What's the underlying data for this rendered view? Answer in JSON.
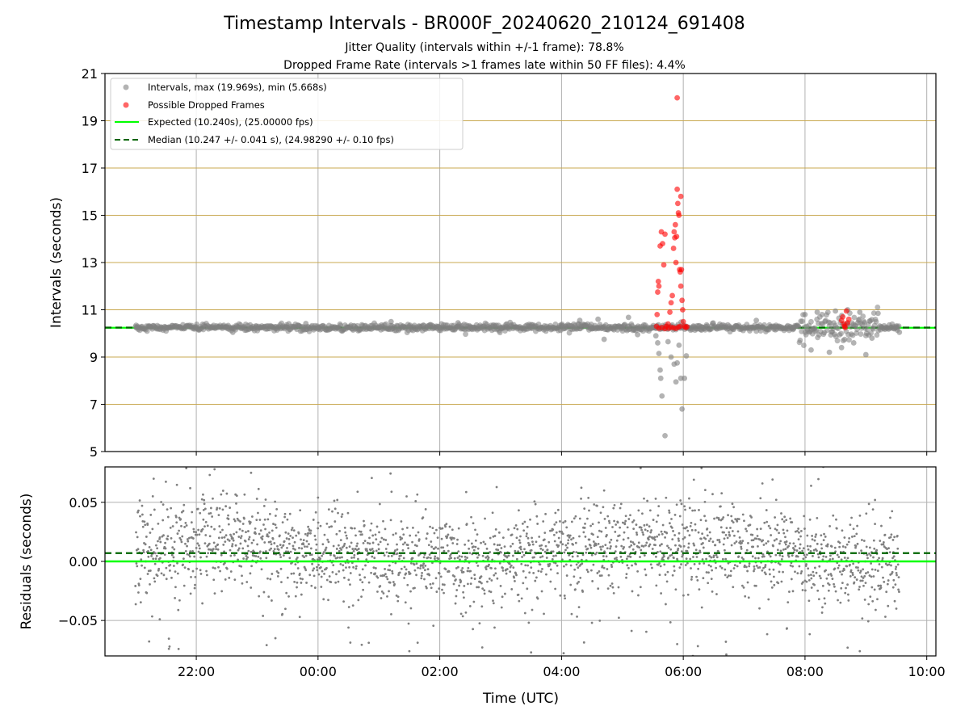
{
  "figure": {
    "title": "Timestamp Intervals - BR000F_20240620_210124_691408",
    "subtitle_1": "Jitter Quality (intervals within +/-1 frame): 78.8%",
    "subtitle_2": "Dropped Frame Rate (intervals >1 frames late within 50 FF files): 4.4%"
  },
  "colors": {
    "intervals": "#808080",
    "dropped": "#ff0000",
    "expected": "#00ff00",
    "median": "#006400",
    "hgrid": "#c8a850",
    "vgrid": "#b0b0b0"
  },
  "chart_data": [
    {
      "type": "scatter",
      "panel": "top",
      "xlabel": "",
      "ylabel": "Intervals (seconds)",
      "ylim": [
        5,
        21
      ],
      "yticks": [
        5,
        7,
        9,
        11,
        13,
        15,
        17,
        19,
        21
      ],
      "xlim_hours": [
        20.5,
        34.15
      ],
      "xticks_hours": [
        22,
        24,
        26,
        28,
        30,
        32,
        34
      ],
      "xtick_labels": [
        "22:00",
        "00:00",
        "02:00",
        "04:00",
        "06:00",
        "08:00",
        "10:00"
      ],
      "grid": true,
      "legend_position": "top-left",
      "expected_interval": 10.24,
      "median_interval": 10.247,
      "series": [
        {
          "name": "Intervals, max (19.969s), min (5.668s)",
          "kind": "scatter",
          "color": "#808080",
          "points": [
            [
              21.02,
              10.23
            ],
            [
              21.5,
              10.25
            ],
            [
              22.0,
              10.22
            ],
            [
              22.5,
              10.26
            ],
            [
              23.0,
              10.24
            ],
            [
              23.5,
              10.25
            ],
            [
              24.0,
              10.23
            ],
            [
              24.5,
              10.27
            ],
            [
              25.0,
              10.24
            ],
            [
              25.5,
              10.26
            ],
            [
              26.0,
              10.25
            ],
            [
              26.5,
              10.22
            ],
            [
              27.0,
              10.26
            ],
            [
              27.5,
              10.24
            ],
            [
              28.0,
              10.28
            ],
            [
              28.5,
              10.25
            ],
            [
              29.0,
              10.23
            ],
            [
              29.5,
              10.26
            ],
            [
              22.6,
              10.05
            ],
            [
              23.8,
              10.42
            ],
            [
              25.2,
              10.5
            ],
            [
              26.3,
              10.45
            ],
            [
              27.1,
              10.4
            ],
            [
              28.3,
              10.55
            ],
            [
              28.6,
              10.6
            ],
            [
              28.7,
              9.75
            ],
            [
              29.1,
              10.68
            ],
            [
              29.25,
              9.95
            ],
            [
              29.55,
              9.9
            ],
            [
              29.58,
              9.6
            ],
            [
              29.6,
              9.15
            ],
            [
              29.62,
              8.45
            ],
            [
              29.63,
              8.1
            ],
            [
              29.65,
              7.35
            ],
            [
              29.7,
              5.67
            ],
            [
              29.75,
              9.65
            ],
            [
              29.8,
              9.0
            ],
            [
              29.85,
              8.7
            ],
            [
              29.88,
              7.95
            ],
            [
              29.9,
              8.75
            ],
            [
              29.93,
              9.5
            ],
            [
              29.96,
              8.1
            ],
            [
              29.98,
              6.8
            ],
            [
              30.02,
              8.1
            ],
            [
              30.05,
              9.05
            ],
            [
              30.3,
              10.28
            ],
            [
              30.8,
              10.22
            ],
            [
              31.2,
              10.55
            ],
            [
              31.5,
              10.3
            ],
            [
              31.8,
              10.25
            ],
            [
              32.0,
              10.8
            ],
            [
              32.1,
              9.3
            ],
            [
              32.2,
              10.9
            ],
            [
              32.4,
              9.2
            ],
            [
              32.5,
              10.95
            ],
            [
              32.6,
              9.4
            ],
            [
              32.7,
              11.0
            ],
            [
              32.8,
              9.6
            ],
            [
              32.9,
              10.9
            ],
            [
              33.0,
              9.1
            ],
            [
              33.1,
              9.8
            ],
            [
              33.2,
              10.85
            ],
            [
              33.5,
              10.24
            ],
            [
              33.55,
              10.05
            ]
          ]
        },
        {
          "name": "Possible Dropped Frames",
          "kind": "scatter",
          "color": "#ff0000",
          "points": [
            [
              29.56,
              10.3
            ],
            [
              29.57,
              10.8
            ],
            [
              29.58,
              11.75
            ],
            [
              29.59,
              12.2
            ],
            [
              29.6,
              12.0
            ],
            [
              29.62,
              13.7
            ],
            [
              29.64,
              14.3
            ],
            [
              29.66,
              13.8
            ],
            [
              29.68,
              12.9
            ],
            [
              29.7,
              14.2
            ],
            [
              29.75,
              10.4
            ],
            [
              29.78,
              10.9
            ],
            [
              29.8,
              11.3
            ],
            [
              29.82,
              11.6
            ],
            [
              29.84,
              13.6
            ],
            [
              29.85,
              14.3
            ],
            [
              29.86,
              14.05
            ],
            [
              29.87,
              14.6
            ],
            [
              29.88,
              13.0
            ],
            [
              29.89,
              14.1
            ],
            [
              29.9,
              16.1
            ],
            [
              29.9,
              19.97
            ],
            [
              29.91,
              15.5
            ],
            [
              29.92,
              15.1
            ],
            [
              29.93,
              15.0
            ],
            [
              29.94,
              12.7
            ],
            [
              29.95,
              12.6
            ],
            [
              29.96,
              15.8
            ],
            [
              29.96,
              12.0
            ],
            [
              29.97,
              12.7
            ],
            [
              29.98,
              11.4
            ],
            [
              29.99,
              11.0
            ],
            [
              30.0,
              10.5
            ],
            [
              30.02,
              10.3
            ],
            [
              30.04,
              10.25
            ],
            [
              30.06,
              10.28
            ],
            [
              29.6,
              10.22
            ],
            [
              29.65,
              10.25
            ],
            [
              29.7,
              10.2
            ],
            [
              29.72,
              10.3
            ],
            [
              29.76,
              10.22
            ],
            [
              29.8,
              10.26
            ],
            [
              29.84,
              10.24
            ],
            [
              29.88,
              10.21
            ],
            [
              29.92,
              10.27
            ],
            [
              29.95,
              10.3
            ],
            [
              32.6,
              10.55
            ],
            [
              32.62,
              10.7
            ],
            [
              32.65,
              10.3
            ],
            [
              32.68,
              10.95
            ],
            [
              32.7,
              10.45
            ],
            [
              32.72,
              10.6
            ],
            [
              32.66,
              10.25
            ],
            [
              32.64,
              10.4
            ]
          ]
        },
        {
          "name": "Expected (10.240s), (25.00000 fps)",
          "kind": "hline",
          "color": "#00ff00",
          "y": 10.24
        },
        {
          "name": "Median (10.247 +/- 0.041 s), (24.98290 +/- 0.10 fps)",
          "kind": "hline-dashed",
          "color": "#006400",
          "y": 10.247
        }
      ]
    },
    {
      "type": "scatter",
      "panel": "bottom",
      "xlabel": "Time (UTC)",
      "ylabel": "Residuals (seconds)",
      "ylim": [
        -0.08,
        0.08
      ],
      "yticks": [
        -0.05,
        0.0,
        0.05
      ],
      "ytick_labels": [
        "−0.05",
        "0.00",
        "0.05"
      ],
      "xlim_hours": [
        20.5,
        34.15
      ],
      "xticks_hours": [
        22,
        24,
        26,
        28,
        30,
        32,
        34
      ],
      "xtick_labels": [
        "22:00",
        "00:00",
        "02:00",
        "04:00",
        "06:00",
        "08:00",
        "10:00"
      ],
      "grid": true,
      "expected_residual": 0.0,
      "median_residual": 0.007,
      "data_x_range_hours": [
        21.0,
        33.55
      ],
      "residual_envelope": {
        "typical_spread": 0.035,
        "outlier_extent": 0.08
      },
      "series": [
        {
          "name": "",
          "kind": "scatter",
          "color": "#808080",
          "points": [
            [
              21.05,
              0.043
            ],
            [
              21.2,
              0.031
            ],
            [
              21.3,
              0.07
            ],
            [
              21.4,
              -0.049
            ],
            [
              21.55,
              -0.074
            ],
            [
              21.9,
              0.062
            ],
            [
              22.3,
              0.078
            ],
            [
              22.9,
              0.075
            ],
            [
              23.3,
              -0.065
            ],
            [
              23.7,
              -0.047
            ],
            [
              24.0,
              0.054
            ],
            [
              24.5,
              -0.056
            ],
            [
              24.65,
              0.059
            ],
            [
              25.5,
              -0.076
            ],
            [
              26.0,
              0.079
            ],
            [
              26.9,
              -0.056
            ],
            [
              27.5,
              -0.077
            ],
            [
              27.9,
              0.041
            ],
            [
              28.5,
              -0.052
            ],
            [
              28.7,
              0.06
            ],
            [
              29.3,
              0.079
            ],
            [
              29.9,
              -0.07
            ],
            [
              30.3,
              0.079
            ],
            [
              30.7,
              -0.068
            ],
            [
              31.3,
              0.066
            ],
            [
              31.7,
              -0.057
            ],
            [
              32.1,
              0.064
            ],
            [
              32.3,
              0.08
            ],
            [
              32.7,
              -0.073
            ],
            [
              32.9,
              -0.076
            ],
            [
              33.15,
              0.052
            ],
            [
              33.4,
              0.037
            ],
            [
              33.45,
              -0.022
            ],
            [
              33.5,
              -0.04
            ]
          ]
        },
        {
          "name": "",
          "kind": "hline",
          "color": "#00ff00",
          "y": 0.0
        },
        {
          "name": "",
          "kind": "hline-dashed",
          "color": "#006400",
          "y": 0.007
        }
      ]
    }
  ]
}
